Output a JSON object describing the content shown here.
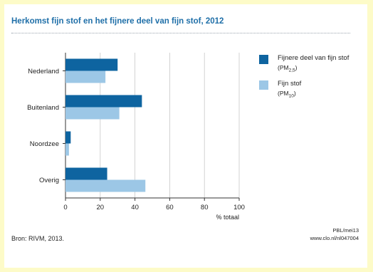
{
  "title": "Herkomst fijn stof en het fijnere deel van fijn stof, 2012",
  "source": "Bron: RIVM, 2013.",
  "credit_line1": "PBL/mei13",
  "credit_line2": "www.clo.nl/nl047004",
  "colors": {
    "pm25": "#0e64a0",
    "pm10": "#9cc7e6",
    "axis": "#333333",
    "grid": "#c8c8c8"
  },
  "legend": [
    {
      "label": "Fijnere deel van fijn stof",
      "sub_prefix": "(PM",
      "sub_index": "2,5",
      "sub_suffix": ")",
      "color": "#0e64a0"
    },
    {
      "label": "Fijn stof",
      "sub_prefix": "(PM",
      "sub_index": "10",
      "sub_suffix": ")",
      "color": "#9cc7e6"
    }
  ],
  "chart_data": {
    "type": "bar",
    "orientation": "horizontal",
    "title": "Herkomst fijn stof en het fijnere deel van fijn stof, 2012",
    "categories": [
      "Nederland",
      "Buitenland",
      "Noordzee",
      "Overig"
    ],
    "series": [
      {
        "name": "Fijnere deel van fijn stof (PM2,5)",
        "values": [
          30,
          44,
          3,
          24
        ]
      },
      {
        "name": "Fijn stof (PM10)",
        "values": [
          23,
          31,
          2,
          46
        ]
      }
    ],
    "xlabel": "% totaal",
    "xlim": [
      0,
      100
    ],
    "xticks": [
      0,
      20,
      40,
      60,
      80,
      100
    ],
    "grid": true,
    "legend_position": "right"
  }
}
